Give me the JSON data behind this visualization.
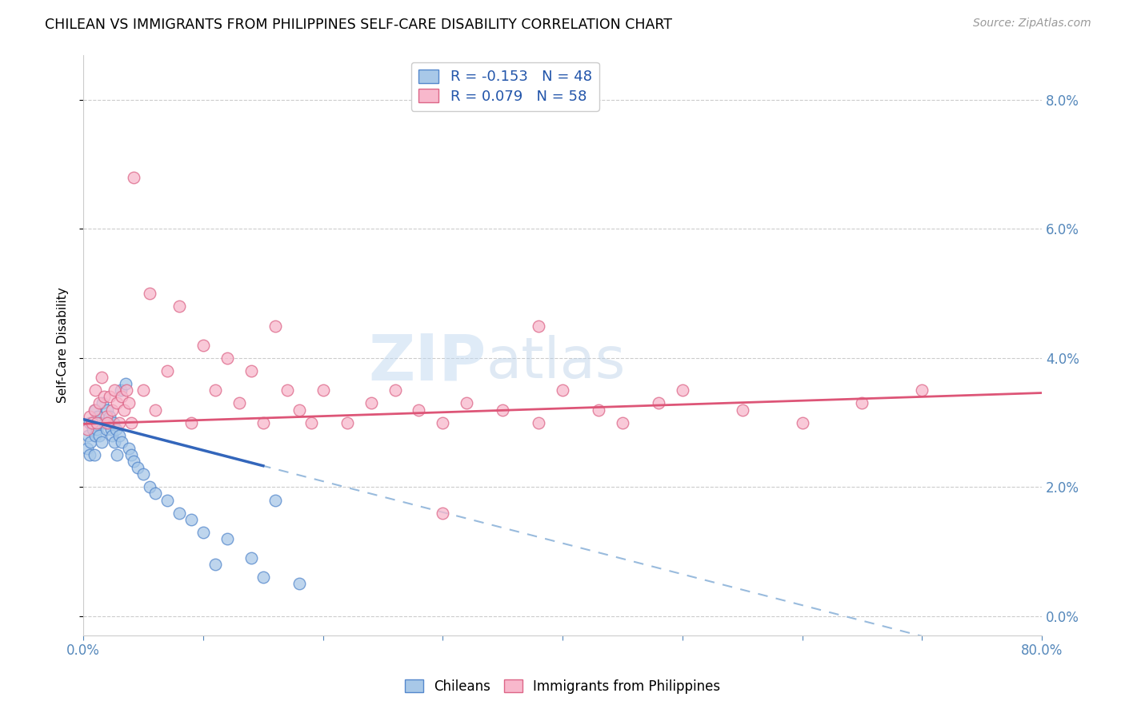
{
  "title": "CHILEAN VS IMMIGRANTS FROM PHILIPPINES SELF-CARE DISABILITY CORRELATION CHART",
  "source": "Source: ZipAtlas.com",
  "ylabel": "Self-Care Disability",
  "yticks": [
    "0.0%",
    "2.0%",
    "4.0%",
    "6.0%",
    "8.0%"
  ],
  "ytick_vals": [
    0.0,
    2.0,
    4.0,
    6.0,
    8.0
  ],
  "xlim": [
    0.0,
    80.0
  ],
  "ylim": [
    -0.3,
    8.7
  ],
  "legend_blue_label": "Chileans",
  "legend_pink_label": "Immigrants from Philippines",
  "R_blue": -0.153,
  "N_blue": 48,
  "R_pink": 0.079,
  "N_pink": 58,
  "blue_color": "#a8c8e8",
  "blue_edge": "#5588cc",
  "pink_color": "#f8b8cc",
  "pink_edge": "#dd6688",
  "blue_line_color": "#3366bb",
  "pink_line_color": "#dd5577",
  "blue_dash_color": "#99bbdd",
  "watermark_zip": "ZIP",
  "watermark_atlas": "atlas",
  "blue_x": [
    0.3,
    0.4,
    0.5,
    0.5,
    0.6,
    0.7,
    0.8,
    0.9,
    1.0,
    1.0,
    1.1,
    1.2,
    1.3,
    1.4,
    1.5,
    1.6,
    1.8,
    1.9,
    2.0,
    2.1,
    2.2,
    2.3,
    2.4,
    2.5,
    2.6,
    2.7,
    2.8,
    3.0,
    3.1,
    3.2,
    3.5,
    3.8,
    4.0,
    4.2,
    4.5,
    5.0,
    5.5,
    6.0,
    7.0,
    8.0,
    9.0,
    10.0,
    11.0,
    12.0,
    14.0,
    15.0,
    16.0,
    18.0
  ],
  "blue_y": [
    2.6,
    2.8,
    2.5,
    3.0,
    2.7,
    3.0,
    2.9,
    2.5,
    2.8,
    3.2,
    2.9,
    3.1,
    2.8,
    3.0,
    2.7,
    3.3,
    3.0,
    2.9,
    3.2,
    3.0,
    3.1,
    2.9,
    2.8,
    3.0,
    2.7,
    2.9,
    2.5,
    2.8,
    3.5,
    2.7,
    3.6,
    2.6,
    2.5,
    2.4,
    2.3,
    2.2,
    2.0,
    1.9,
    1.8,
    1.6,
    1.5,
    1.3,
    0.8,
    1.2,
    0.9,
    0.6,
    1.8,
    0.5
  ],
  "pink_x": [
    0.3,
    0.5,
    0.7,
    0.9,
    1.0,
    1.1,
    1.3,
    1.5,
    1.7,
    1.9,
    2.0,
    2.2,
    2.4,
    2.6,
    2.8,
    3.0,
    3.2,
    3.4,
    3.6,
    3.8,
    4.0,
    4.2,
    5.0,
    5.5,
    6.0,
    7.0,
    8.0,
    9.0,
    10.0,
    11.0,
    12.0,
    13.0,
    14.0,
    15.0,
    16.0,
    17.0,
    18.0,
    19.0,
    20.0,
    22.0,
    24.0,
    26.0,
    28.0,
    30.0,
    32.0,
    35.0,
    38.0,
    40.0,
    43.0,
    45.0,
    48.0,
    50.0,
    55.0,
    60.0,
    65.0,
    70.0,
    30.0,
    38.0
  ],
  "pink_y": [
    2.9,
    3.1,
    3.0,
    3.2,
    3.5,
    3.0,
    3.3,
    3.7,
    3.4,
    3.1,
    3.0,
    3.4,
    3.2,
    3.5,
    3.3,
    3.0,
    3.4,
    3.2,
    3.5,
    3.3,
    3.0,
    6.8,
    3.5,
    5.0,
    3.2,
    3.8,
    4.8,
    3.0,
    4.2,
    3.5,
    4.0,
    3.3,
    3.8,
    3.0,
    4.5,
    3.5,
    3.2,
    3.0,
    3.5,
    3.0,
    3.3,
    3.5,
    3.2,
    3.0,
    3.3,
    3.2,
    3.0,
    3.5,
    3.2,
    3.0,
    3.3,
    3.5,
    3.2,
    3.0,
    3.3,
    3.5,
    1.6,
    4.5
  ]
}
